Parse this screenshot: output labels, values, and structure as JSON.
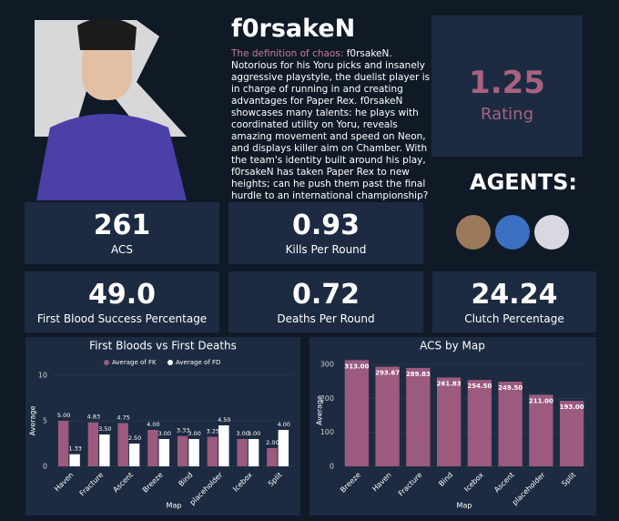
{
  "profile": {
    "name": "f0rsakeN",
    "desc_lead": "The definition of chaos:",
    "desc": "f0rsakeN. Notorious for his Yoru picks and insanely aggressive playstyle, the duelist player is in charge of running in and creating advantages for Paper Rex. f0rsakeN showcases many talents: he plays with coordinated utility on Yoru, reveals amazing movement and speed on Neon, and displays killer aim on Chamber. With the team's identity built around his play, f0rsakeN has taken Paper Rex to new heights; can he push them past the final hurdle to an international championship?",
    "rating": "1.25",
    "rating_label": "Rating",
    "agents_title": "AGENTS:"
  },
  "stats": [
    {
      "value": "261",
      "label": "ACS"
    },
    {
      "value": "0.93",
      "label": "Kills Per Round"
    },
    {
      "value": "49.0",
      "label": "First Blood Success Percentage"
    },
    {
      "value": "0.72",
      "label": "Deaths Per Round"
    },
    {
      "value": "24.24",
      "label": "Clutch Percentage"
    }
  ],
  "chart_data": [
    {
      "type": "grouped-bar",
      "title": "First Bloods vs First Deaths",
      "x_label": "Map",
      "y_label": "Average",
      "categories": [
        "Haven",
        "Fracture",
        "Ascent",
        "Breeze",
        "Bind",
        "placeholder",
        "Icebox",
        "Split"
      ],
      "series": [
        {
          "name": "Average of FK",
          "color": "#9b5a7e",
          "values": [
            5,
            4.83,
            4.75,
            4,
            3.33,
            3.25,
            3,
            2
          ],
          "value_labels": [
            "5.00",
            "4.83",
            "4.75",
            "4.00",
            "3.33",
            "3.25",
            "3.00",
            "2.00"
          ]
        },
        {
          "name": "Average of FD",
          "color": "#ffffff",
          "values": [
            1.33,
            3.5,
            2.5,
            3,
            3,
            4.5,
            3,
            4
          ],
          "value_labels": [
            "1.33",
            "3.50",
            "2.50",
            "3.00",
            "3.00",
            "4.50",
            "3.00",
            "4.00"
          ]
        }
      ],
      "ylim": [
        0,
        10
      ],
      "yticks": [
        0,
        5,
        10
      ],
      "grid": true,
      "legend": "top"
    },
    {
      "type": "bar",
      "title": "ACS by Map",
      "x_label": "Map",
      "y_label": "Average",
      "categories": [
        "Breeze",
        "Haven",
        "Fracture",
        "Bind",
        "Icebox",
        "Ascent",
        "placeholder",
        "Split"
      ],
      "values": [
        313,
        293.67,
        289.83,
        261.83,
        254.5,
        249.5,
        211,
        193
      ],
      "value_labels": [
        "313.00",
        "293.67",
        "289.83",
        "261.83",
        "254.50",
        "249.50",
        "211.00",
        "193.00"
      ],
      "color": "#9b5a7e",
      "ylim": [
        0,
        330
      ],
      "yticks": [
        0,
        100,
        200,
        300
      ],
      "grid": true
    }
  ]
}
